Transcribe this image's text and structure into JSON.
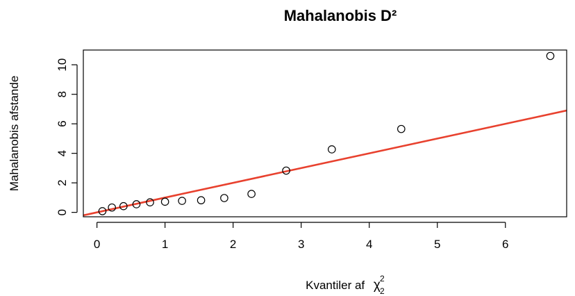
{
  "chart_data": {
    "type": "scatter",
    "title": "Mahalanobis D²",
    "xlabel": "Kvantiler af",
    "xlabel_symbol": "χ",
    "xlabel_superscript": "2",
    "xlabel_subscript": "2",
    "ylabel": "Mahalanobis afstande",
    "xlim": [
      -0.2,
      6.9
    ],
    "ylim": [
      -0.3,
      11.0
    ],
    "xticks": [
      0,
      1,
      2,
      3,
      4,
      5,
      6
    ],
    "yticks": [
      0,
      2,
      4,
      6,
      8,
      10
    ],
    "grid": false,
    "points": {
      "x": [
        0.08,
        0.22,
        0.39,
        0.58,
        0.78,
        1.0,
        1.25,
        1.53,
        1.87,
        2.27,
        2.78,
        3.45,
        4.47,
        6.66
      ],
      "y": [
        0.08,
        0.33,
        0.42,
        0.55,
        0.68,
        0.72,
        0.78,
        0.82,
        0.97,
        1.25,
        2.83,
        4.27,
        5.65,
        10.6
      ]
    },
    "reference_line": {
      "intercept": 0.0,
      "slope": 1.0,
      "color": "#e8412e"
    }
  }
}
